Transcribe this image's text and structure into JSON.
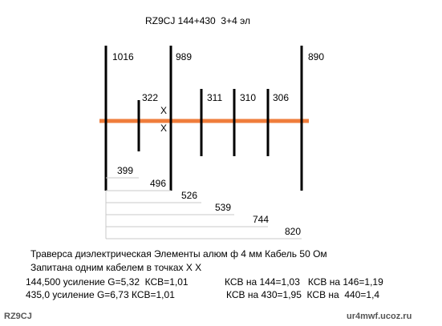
{
  "title": "RZ9CJ 144+430  3+4 эл",
  "elements": [
    {
      "label": "1016"
    },
    {
      "label": "322"
    },
    {
      "label": "989"
    },
    {
      "label": "311"
    },
    {
      "label": "310"
    },
    {
      "label": "306"
    },
    {
      "label": "890"
    }
  ],
  "feed_marks": [
    "X",
    "X"
  ],
  "spacings": [
    {
      "label": "399"
    },
    {
      "label": "496"
    },
    {
      "label": "526"
    },
    {
      "label": "539"
    },
    {
      "label": "744"
    },
    {
      "label": "820"
    }
  ],
  "notes": [
    "Траверса диэлектрическая Элементы алюм ф 4 мм Кабель 50 Ом",
    "Запитана одним кабелем в точках X X"
  ],
  "results": [
    [
      "144,500 усиление G=5,32  КСВ=1,01",
      "КСВ на 144=1,03   КСВ на 146=1,19"
    ],
    [
      "435,0 усиление G=6,73 КСВ=1,01",
      "КСВ на 430=1,95  КСВ на  440=1,4"
    ]
  ],
  "watermark": {
    "left": "RZ9CJ",
    "right": "ur4mwf.ucoz.ru"
  }
}
